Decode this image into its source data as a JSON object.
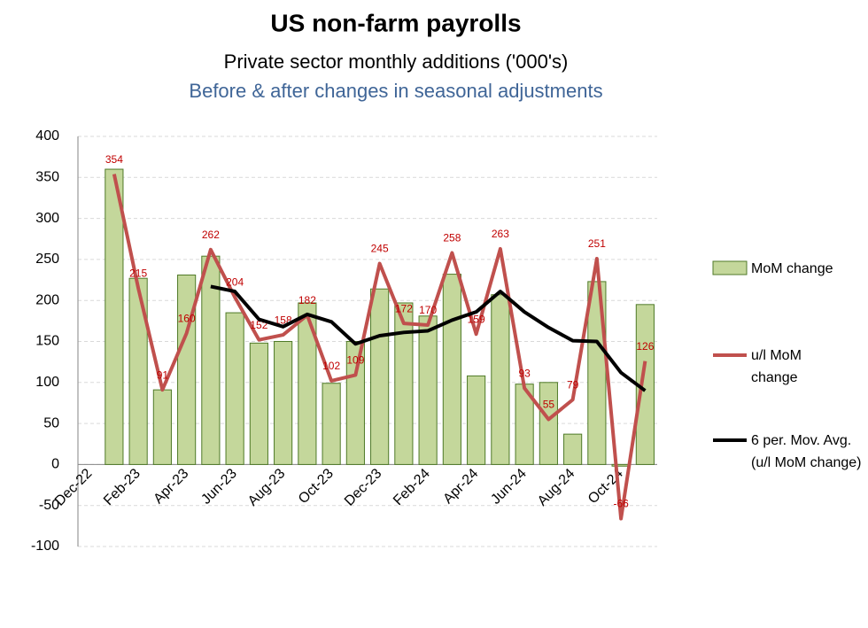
{
  "chart_data": {
    "type": "bar-line",
    "title": "US non-farm payrolls",
    "subtitle": "Private sector monthly additions ('000's)",
    "subtitle2": "Before & after changes in seasonal adjustments",
    "categories": [
      "Dec-22",
      null,
      "Feb-23",
      null,
      "Apr-23",
      null,
      "Jun-23",
      null,
      "Aug-23",
      null,
      "Oct-23",
      null,
      "Dec-23",
      null,
      "Feb-24",
      null,
      "Apr-24",
      null,
      "Jun-24",
      null,
      "Aug-24",
      null,
      "Oct-24",
      null
    ],
    "series": [
      {
        "name": "MoM change",
        "kind": "bar",
        "color": "#c4d79b",
        "edge": "#4f7a28",
        "values": [
          null,
          360,
          227,
          91,
          231,
          254,
          185,
          148,
          150,
          197,
          99,
          150,
          214,
          197,
          181,
          232,
          108,
          207,
          98,
          100,
          37,
          223,
          -2,
          195
        ]
      },
      {
        "name": "u/l MoM change",
        "kind": "line",
        "color": "#c0504d",
        "labels": true,
        "values": [
          null,
          354,
          215,
          91,
          160,
          262,
          204,
          152,
          158,
          182,
          102,
          109,
          245,
          172,
          170,
          258,
          159,
          263,
          93,
          55,
          79,
          251,
          -66,
          126
        ]
      },
      {
        "name": "6 per. Mov. Avg. (u/l MoM change)",
        "kind": "line",
        "color": "#000000",
        "values": [
          null,
          null,
          null,
          null,
          null,
          217,
          211,
          177,
          168,
          183,
          174,
          147,
          157,
          161,
          163,
          176,
          186,
          211,
          186,
          167,
          151,
          150,
          112,
          90
        ]
      }
    ],
    "ylim": [
      -100,
      400
    ],
    "yticks": [
      -100,
      -50,
      0,
      50,
      100,
      150,
      200,
      250,
      300,
      350,
      400
    ],
    "grid": true
  }
}
